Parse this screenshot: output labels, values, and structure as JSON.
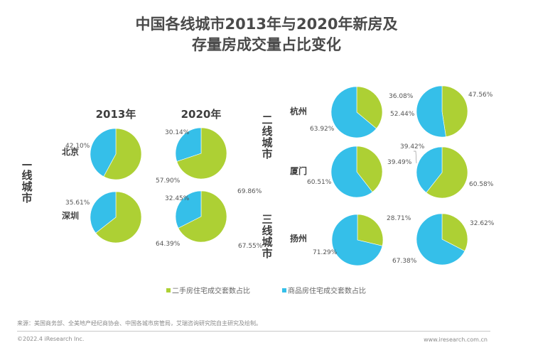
{
  "title": {
    "line1": "中国各线城市2013年与2020年新房及",
    "line2": "存量房成交量占比变化"
  },
  "colors": {
    "second_hand": "#add034",
    "new_house": "#35bfe9",
    "text": "#555555",
    "label": "#444444"
  },
  "chart_data": {
    "type": "pie",
    "title": "中国各线城市2013年与2020年新房及存量房成交量占比变化",
    "years": [
      "2013年",
      "2020年"
    ],
    "legend": {
      "position": "bottom",
      "entries": [
        {
          "key": "second_hand",
          "label": "二手房住宅成交套数占比"
        },
        {
          "key": "new_house",
          "label": "商品房住宅成交套数占比"
        }
      ]
    },
    "groups": [
      {
        "tier": "一线城市",
        "cities": [
          {
            "name": "北京",
            "pies": [
              {
                "year": "2013年",
                "second_hand": 57.9,
                "new_house": 42.1
              },
              {
                "year": "2020年",
                "second_hand": 69.86,
                "new_house": 30.14
              }
            ]
          },
          {
            "name": "深圳",
            "pies": [
              {
                "year": "2013年",
                "second_hand": 64.39,
                "new_house": 35.61
              },
              {
                "year": "2020年",
                "second_hand": 67.55,
                "new_house": 32.45
              }
            ]
          }
        ]
      },
      {
        "tier": "二线城市",
        "cities": [
          {
            "name": "杭州",
            "pies": [
              {
                "year": "2013年",
                "second_hand": 36.08,
                "new_house": 63.92
              },
              {
                "year": "2020年",
                "second_hand": 47.56,
                "new_house": 52.44
              }
            ]
          },
          {
            "name": "厦门",
            "pies": [
              {
                "year": "2013年",
                "second_hand": 39.49,
                "new_house": 60.51
              },
              {
                "year": "2020年",
                "second_hand": 60.58,
                "new_house": 39.42
              }
            ]
          }
        ]
      },
      {
        "tier": "三线城市",
        "cities": [
          {
            "name": "扬州",
            "pies": [
              {
                "year": "2013年",
                "second_hand": 28.71,
                "new_house": 71.29
              },
              {
                "year": "2020年",
                "second_hand": 32.62,
                "new_house": 67.38
              }
            ]
          }
        ]
      }
    ]
  },
  "footer": {
    "source": "来源：美国商务部、全美地产经纪商协会、中国各城市房管局，艾瑞咨询研究院自主研究及绘制。",
    "copyright": "©2022.4 iResearch Inc.",
    "url": "www.iresearch.com.cn"
  }
}
